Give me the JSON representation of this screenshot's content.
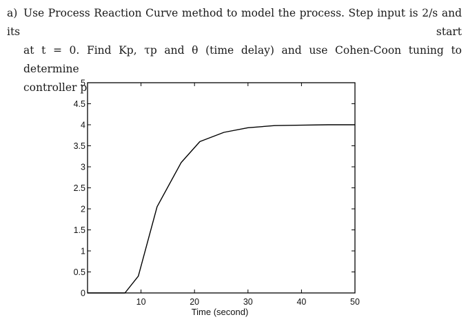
{
  "question": {
    "label": "a)",
    "line1": "Use Process Reaction Curve method to model the process. Step input is 2/s and its start",
    "line2": "at t = 0. Find Kp, τp and θ (time delay) and use Cohen-Coon tuning to determine",
    "line3": "controller parameter."
  },
  "chart_data": {
    "type": "line",
    "title": "",
    "xlabel": "Time (second)",
    "ylabel": "",
    "xlim": [
      0,
      50
    ],
    "ylim": [
      0,
      5
    ],
    "xticks": [
      10,
      20,
      30,
      40,
      50
    ],
    "yticks": [
      0,
      0.5,
      1,
      1.5,
      2,
      2.5,
      3,
      3.5,
      4,
      4.5,
      5
    ],
    "xtick_labels": [
      "10",
      "20",
      "30",
      "40",
      "50"
    ],
    "ytick_labels": [
      "0",
      "0.5",
      "1",
      "1.5",
      "2",
      "2.5",
      "3",
      "3.5",
      "4",
      "4.5",
      "5"
    ],
    "grid": false,
    "series": [
      {
        "color": "#000000",
        "x": [
          0,
          7,
          9.5,
          13,
          17.5,
          21,
          25.5,
          30,
          35,
          40,
          45,
          50
        ],
        "y": [
          0,
          0,
          0.4,
          2.05,
          3.1,
          3.6,
          3.82,
          3.93,
          3.98,
          3.99,
          4.0,
          4.0
        ]
      }
    ]
  }
}
